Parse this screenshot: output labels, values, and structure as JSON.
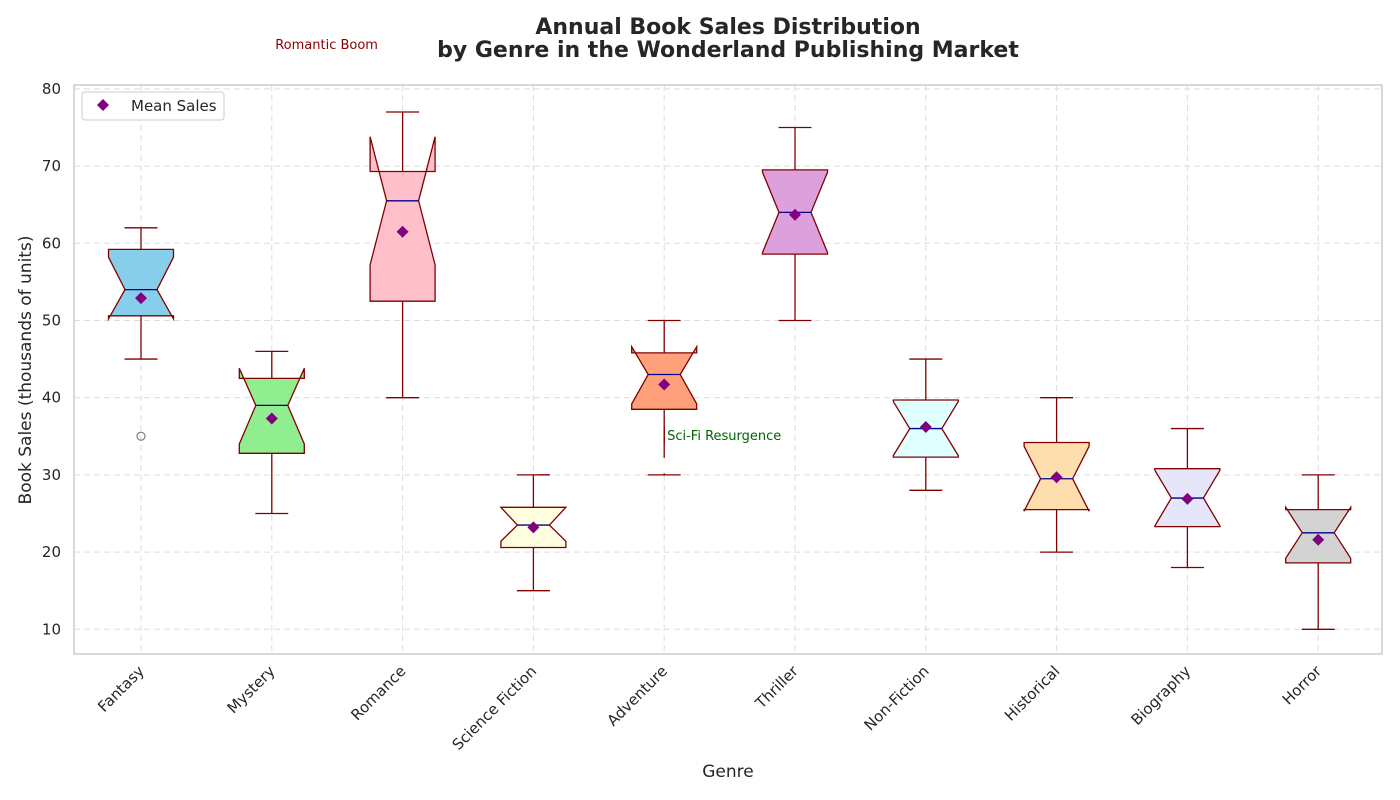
{
  "chart_data": {
    "type": "boxplot",
    "title": [
      "Annual Book Sales Distribution",
      "by Genre in the Wonderland Publishing Market"
    ],
    "xlabel": "Genre",
    "ylabel": "Book Sales (thousands of units)",
    "ylim": [
      6.8,
      80.5
    ],
    "yticks": [
      10,
      20,
      30,
      40,
      50,
      60,
      70,
      80
    ],
    "grid": true,
    "notched": true,
    "legend": {
      "placement": "top-left",
      "entries": [
        {
          "label": "Mean Sales",
          "marker": "diamond",
          "color": "#800080"
        }
      ]
    },
    "categories": [
      "Fantasy",
      "Mystery",
      "Romance",
      "Science Fiction",
      "Adventure",
      "Thriller",
      "Non-Fiction",
      "Historical",
      "Biography",
      "Horror"
    ],
    "boxes": [
      {
        "genre": "Fantasy",
        "whisker_low": 45,
        "q1": 50.6,
        "median": 54,
        "q3": 59.2,
        "whisker_high": 62,
        "notch_low": 50.2,
        "notch_high": 58.2,
        "mean": 52.9,
        "outliers": [
          35
        ],
        "fill": "#87CEEB"
      },
      {
        "genre": "Mystery",
        "whisker_low": 25,
        "q1": 32.8,
        "median": 39,
        "q3": 42.5,
        "whisker_high": 46,
        "notch_low": 34,
        "notch_high": 43.8,
        "mean": 37.3,
        "outliers": [],
        "fill": "#90EE90"
      },
      {
        "genre": "Romance",
        "whisker_low": 40,
        "q1": 52.5,
        "median": 65.5,
        "q3": 69.3,
        "whisker_high": 77,
        "notch_low": 57.2,
        "notch_high": 73.8,
        "mean": 61.5,
        "outliers": [],
        "fill": "#FFC0CB"
      },
      {
        "genre": "Science Fiction",
        "whisker_low": 15,
        "q1": 20.6,
        "median": 23.5,
        "q3": 25.8,
        "whisker_high": 30,
        "notch_low": 21.4,
        "notch_high": 25.8,
        "mean": 23.2,
        "outliers": [],
        "fill": "#FFFFE0"
      },
      {
        "genre": "Adventure",
        "whisker_low": 30,
        "q1": 38.5,
        "median": 43,
        "q3": 45.8,
        "whisker_high": 50,
        "notch_low": 39.2,
        "notch_high": 46.6,
        "mean": 41.7,
        "outliers": [],
        "fill": "#FFA07A"
      },
      {
        "genre": "Thriller",
        "whisker_low": 50,
        "q1": 58.6,
        "median": 64,
        "q3": 69.5,
        "whisker_high": 75,
        "notch_low": 58.8,
        "notch_high": 69.2,
        "mean": 63.7,
        "outliers": [],
        "fill": "#DDA0DD"
      },
      {
        "genre": "Non-Fiction",
        "whisker_low": 28,
        "q1": 32.3,
        "median": 36,
        "q3": 39.7,
        "whisker_high": 45,
        "notch_low": 32.5,
        "notch_high": 39.5,
        "mean": 36.2,
        "outliers": [],
        "fill": "#E0FFFF"
      },
      {
        "genre": "Historical",
        "whisker_low": 20,
        "q1": 25.5,
        "median": 29.5,
        "q3": 34.2,
        "whisker_high": 40,
        "notch_low": 25.3,
        "notch_high": 33.7,
        "mean": 29.7,
        "outliers": [],
        "fill": "#FFDEAD"
      },
      {
        "genre": "Biography",
        "whisker_low": 18,
        "q1": 23.3,
        "median": 27,
        "q3": 30.8,
        "whisker_high": 36,
        "notch_low": 23.4,
        "notch_high": 30.6,
        "mean": 26.9,
        "outliers": [],
        "fill": "#E6E6FA"
      },
      {
        "genre": "Horror",
        "whisker_low": 10,
        "q1": 18.6,
        "median": 22.5,
        "q3": 25.5,
        "whisker_high": 30,
        "notch_low": 19.2,
        "notch_high": 25.8,
        "mean": 21.6,
        "outliers": [],
        "fill": "#D3D3D3"
      }
    ],
    "annotations": [
      {
        "text": "Romantic Boom",
        "genre": "Romance",
        "color": "#8B0000"
      },
      {
        "text": "Sci-Fi Resurgence",
        "genre": "Science Fiction",
        "color": "#006400"
      }
    ],
    "colors": {
      "box_edge": "#800000",
      "median": "#00008B",
      "whisker": "#800000",
      "mean_marker": "#800080",
      "outlier": "#808080",
      "grid": "#dddddd",
      "frame": "#cccccc"
    }
  }
}
